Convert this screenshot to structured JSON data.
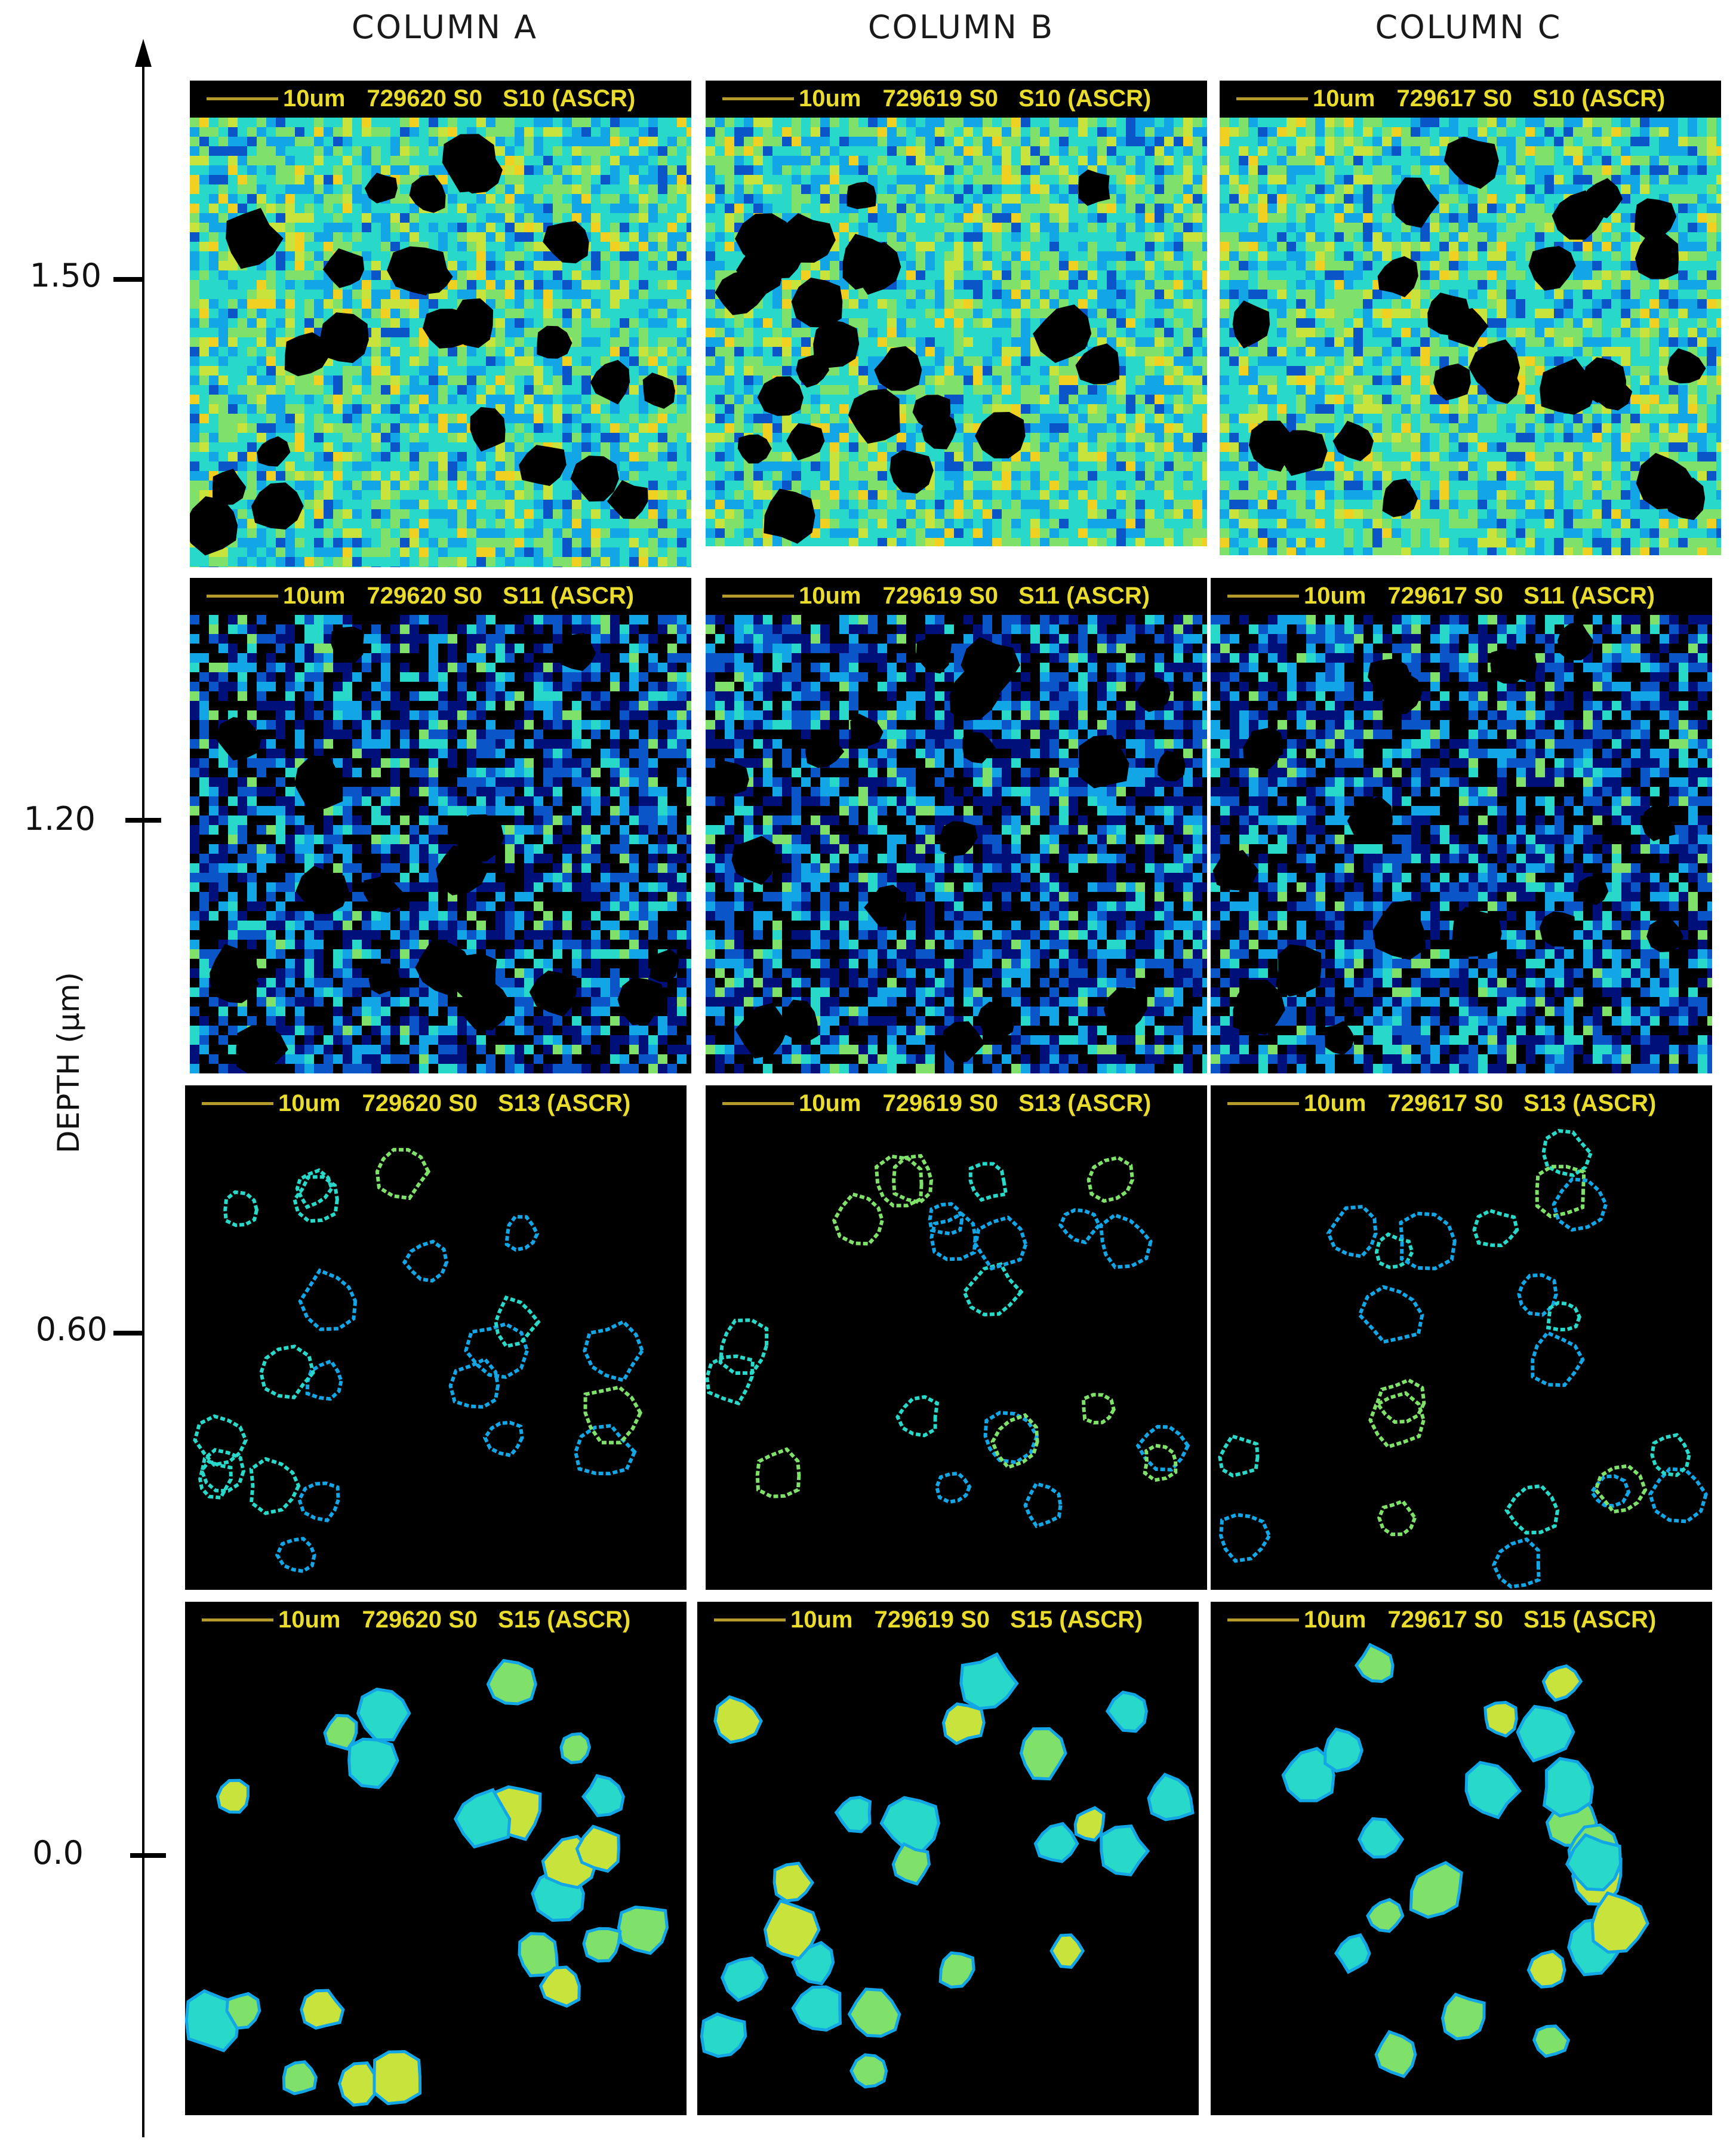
{
  "figure": {
    "columns": [
      {
        "label": "COLUMN A",
        "sample": "729620 S0"
      },
      {
        "label": "COLUMN B",
        "sample": "729619 S0"
      },
      {
        "label": "COLUMN C",
        "sample": "729617 S0"
      }
    ],
    "rows": [
      {
        "slice": "S10 (ASCR)",
        "depth": "1.50"
      },
      {
        "slice": "S11 (ASCR)",
        "depth": "1.20"
      },
      {
        "slice": "S13 (ASCR)",
        "depth": "0.60"
      },
      {
        "slice": "S15 (ASCR)",
        "depth": "0.0"
      }
    ],
    "scale_label": "10um",
    "axis": {
      "title": "DEPTH (μm)",
      "ticks": [
        "1.50",
        "1.20",
        "0.60",
        "0.0"
      ]
    }
  },
  "colors": {
    "background": "#ffffff",
    "panel_background": "#000000",
    "header_text": "#e9dc2a",
    "scale_bar": "#b59a2c",
    "colormap": [
      "#00107a",
      "#0a56c8",
      "#12a6e6",
      "#28d8c8",
      "#7fe06a",
      "#c8e43c",
      "#f0d020",
      "#f07820"
    ]
  }
}
